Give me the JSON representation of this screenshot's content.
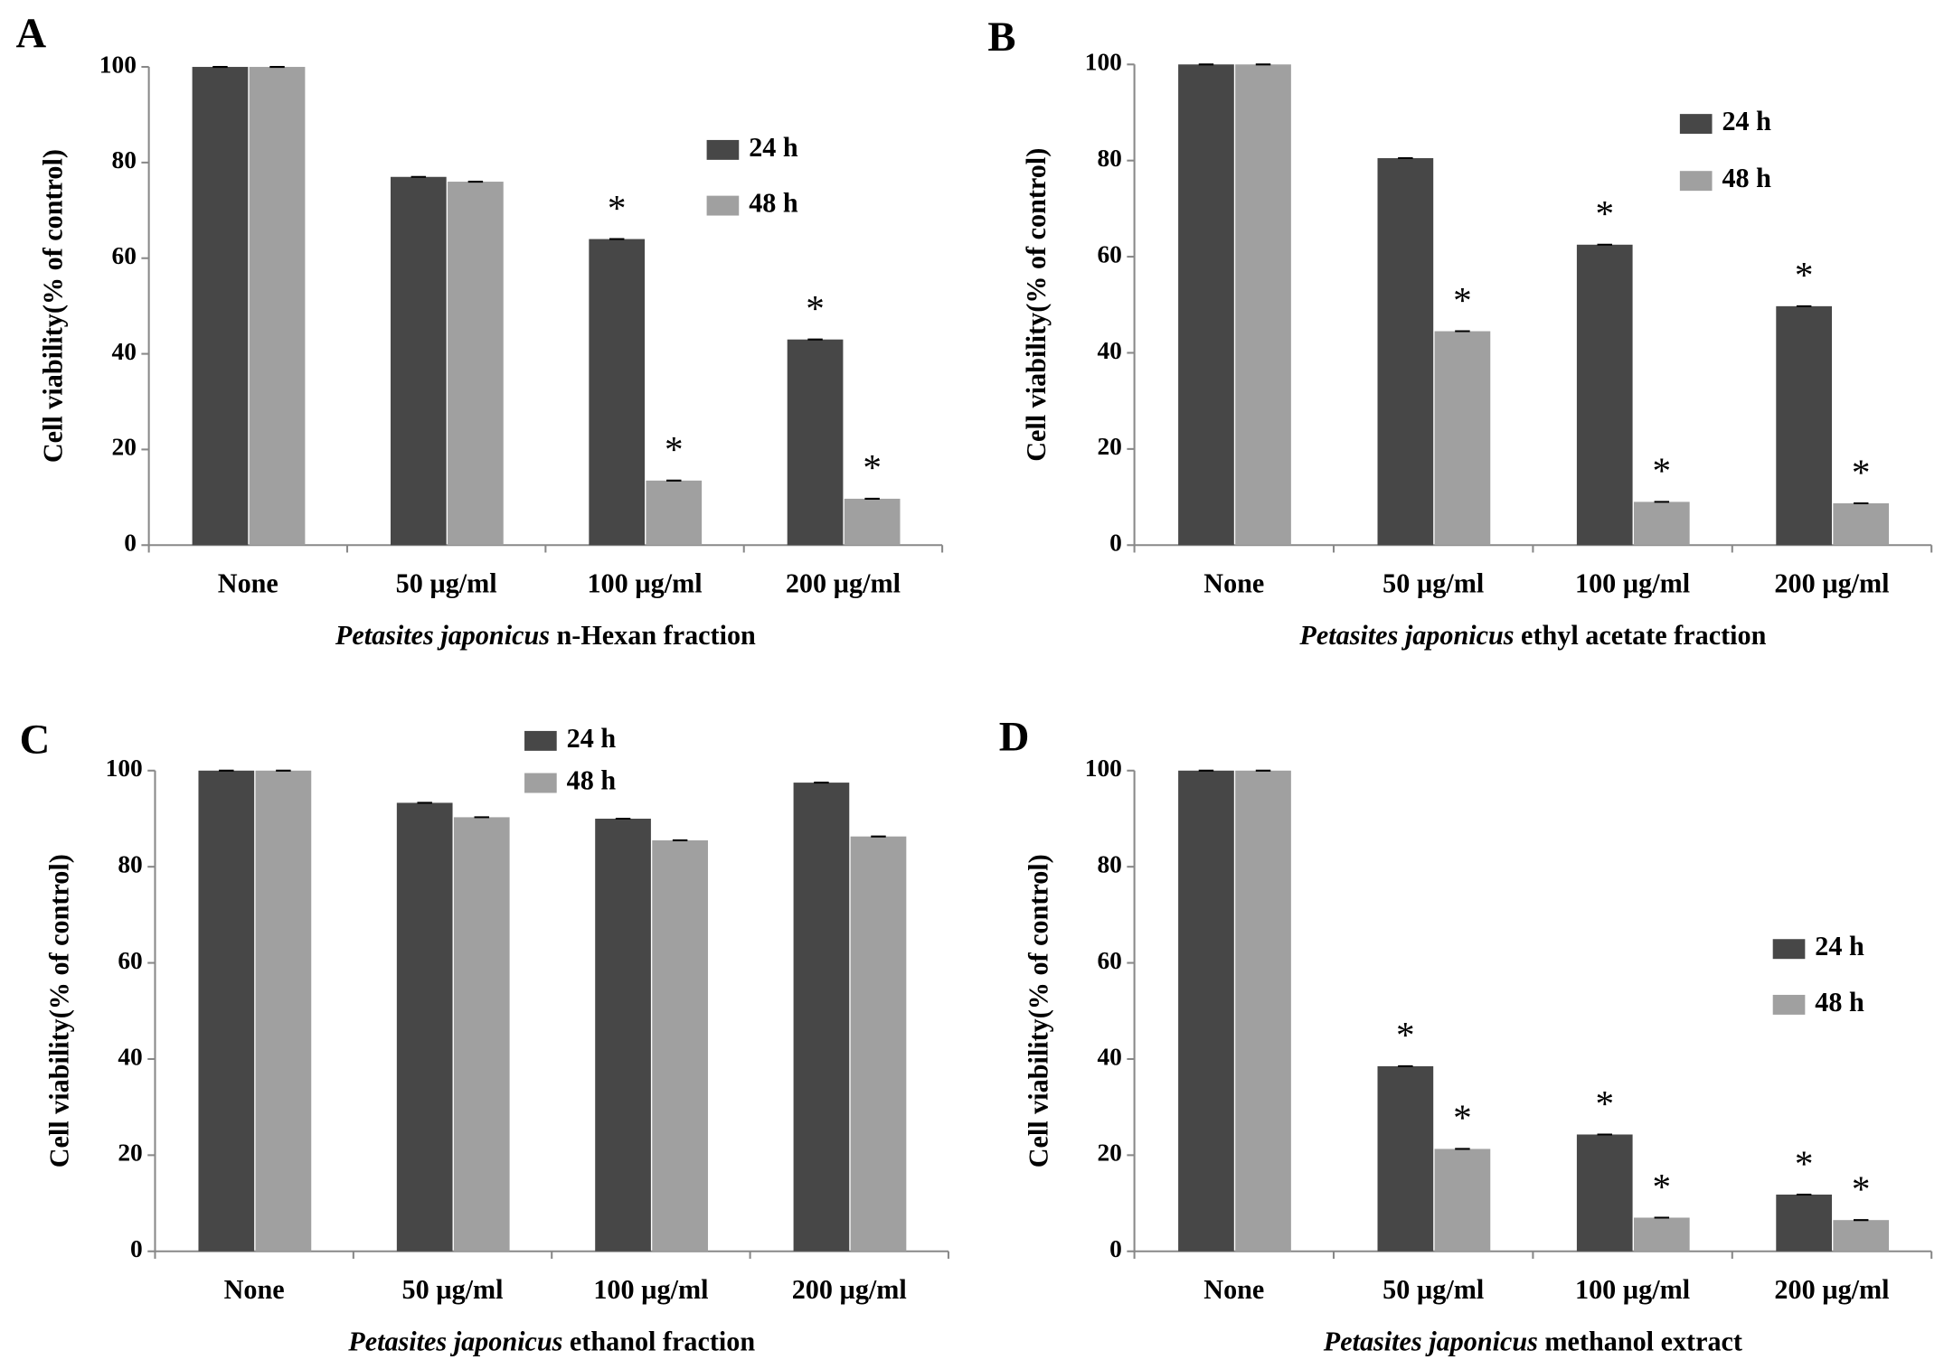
{
  "chart_data": [
    {
      "type": "bar",
      "panel": "A",
      "ylabel": "Cell viability(% of control)",
      "xlabel": {
        "italic": "Petasites japonicus",
        "text": "n-Hexan fraction"
      },
      "categories": [
        "None",
        "50 µg/ml",
        "100 µg/ml",
        "200 µg/ml"
      ],
      "series": [
        {
          "name": "24 h",
          "color": "#474747",
          "values": [
            100,
            77,
            64,
            43
          ],
          "annotations": [
            null,
            null,
            "*",
            "*"
          ]
        },
        {
          "name": "48 h",
          "color": "#a0a0a0",
          "values": [
            100,
            76,
            13.5,
            9.7
          ],
          "annotations": [
            null,
            null,
            "*",
            "*"
          ]
        }
      ],
      "ylim": [
        0,
        100
      ],
      "yticks": [
        0,
        20,
        40,
        60,
        80,
        100
      ]
    },
    {
      "type": "bar",
      "panel": "B",
      "ylabel": "Cell viability(% of control)",
      "xlabel": {
        "italic": "Petasites japonicus",
        "text": "ethyl acetate fraction"
      },
      "categories": [
        "None",
        "50 µg/ml",
        "100 µg/ml",
        "200 µg/ml"
      ],
      "series": [
        {
          "name": "24 h",
          "color": "#474747",
          "values": [
            100,
            80.5,
            62.5,
            49.7
          ],
          "annotations": [
            null,
            null,
            "*",
            "*"
          ]
        },
        {
          "name": "48 h",
          "color": "#a0a0a0",
          "values": [
            100,
            44.5,
            9,
            8.7
          ],
          "annotations": [
            null,
            "*",
            "*",
            "*"
          ]
        }
      ],
      "ylim": [
        0,
        100
      ],
      "yticks": [
        0,
        20,
        40,
        60,
        80,
        100
      ]
    },
    {
      "type": "bar",
      "panel": "C",
      "ylabel": "Cell viability(% of control)",
      "xlabel": {
        "italic": "Petasites japonicus",
        "text": "ethanol fraction"
      },
      "categories": [
        "None",
        "50 µg/ml",
        "100 µg/ml",
        "200 µg/ml"
      ],
      "series": [
        {
          "name": "24 h",
          "color": "#474747",
          "values": [
            100,
            93.3,
            90,
            97.5
          ]
        },
        {
          "name": "48 h",
          "color": "#a0a0a0",
          "values": [
            100,
            90.3,
            85.5,
            86.3
          ]
        }
      ],
      "ylim": [
        0,
        100
      ],
      "yticks": [
        0,
        20,
        40,
        60,
        80,
        100
      ]
    },
    {
      "type": "bar",
      "panel": "D",
      "ylabel": "Cell viability(% of control)",
      "xlabel": {
        "italic": "Petasites japonicus",
        "text": "methanol extract"
      },
      "categories": [
        "None",
        "50 µg/ml",
        "100 µg/ml",
        "200 µg/ml"
      ],
      "series": [
        {
          "name": "24 h",
          "color": "#474747",
          "values": [
            100,
            38.5,
            24.3,
            11.8
          ],
          "annotations": [
            null,
            "*",
            "*",
            "*"
          ]
        },
        {
          "name": "48 h",
          "color": "#a0a0a0",
          "values": [
            100,
            21.3,
            7,
            6.5
          ],
          "annotations": [
            null,
            "*",
            "*",
            "*"
          ]
        }
      ],
      "ylim": [
        0,
        100
      ],
      "yticks": [
        0,
        20,
        40,
        60,
        80,
        100
      ]
    }
  ]
}
